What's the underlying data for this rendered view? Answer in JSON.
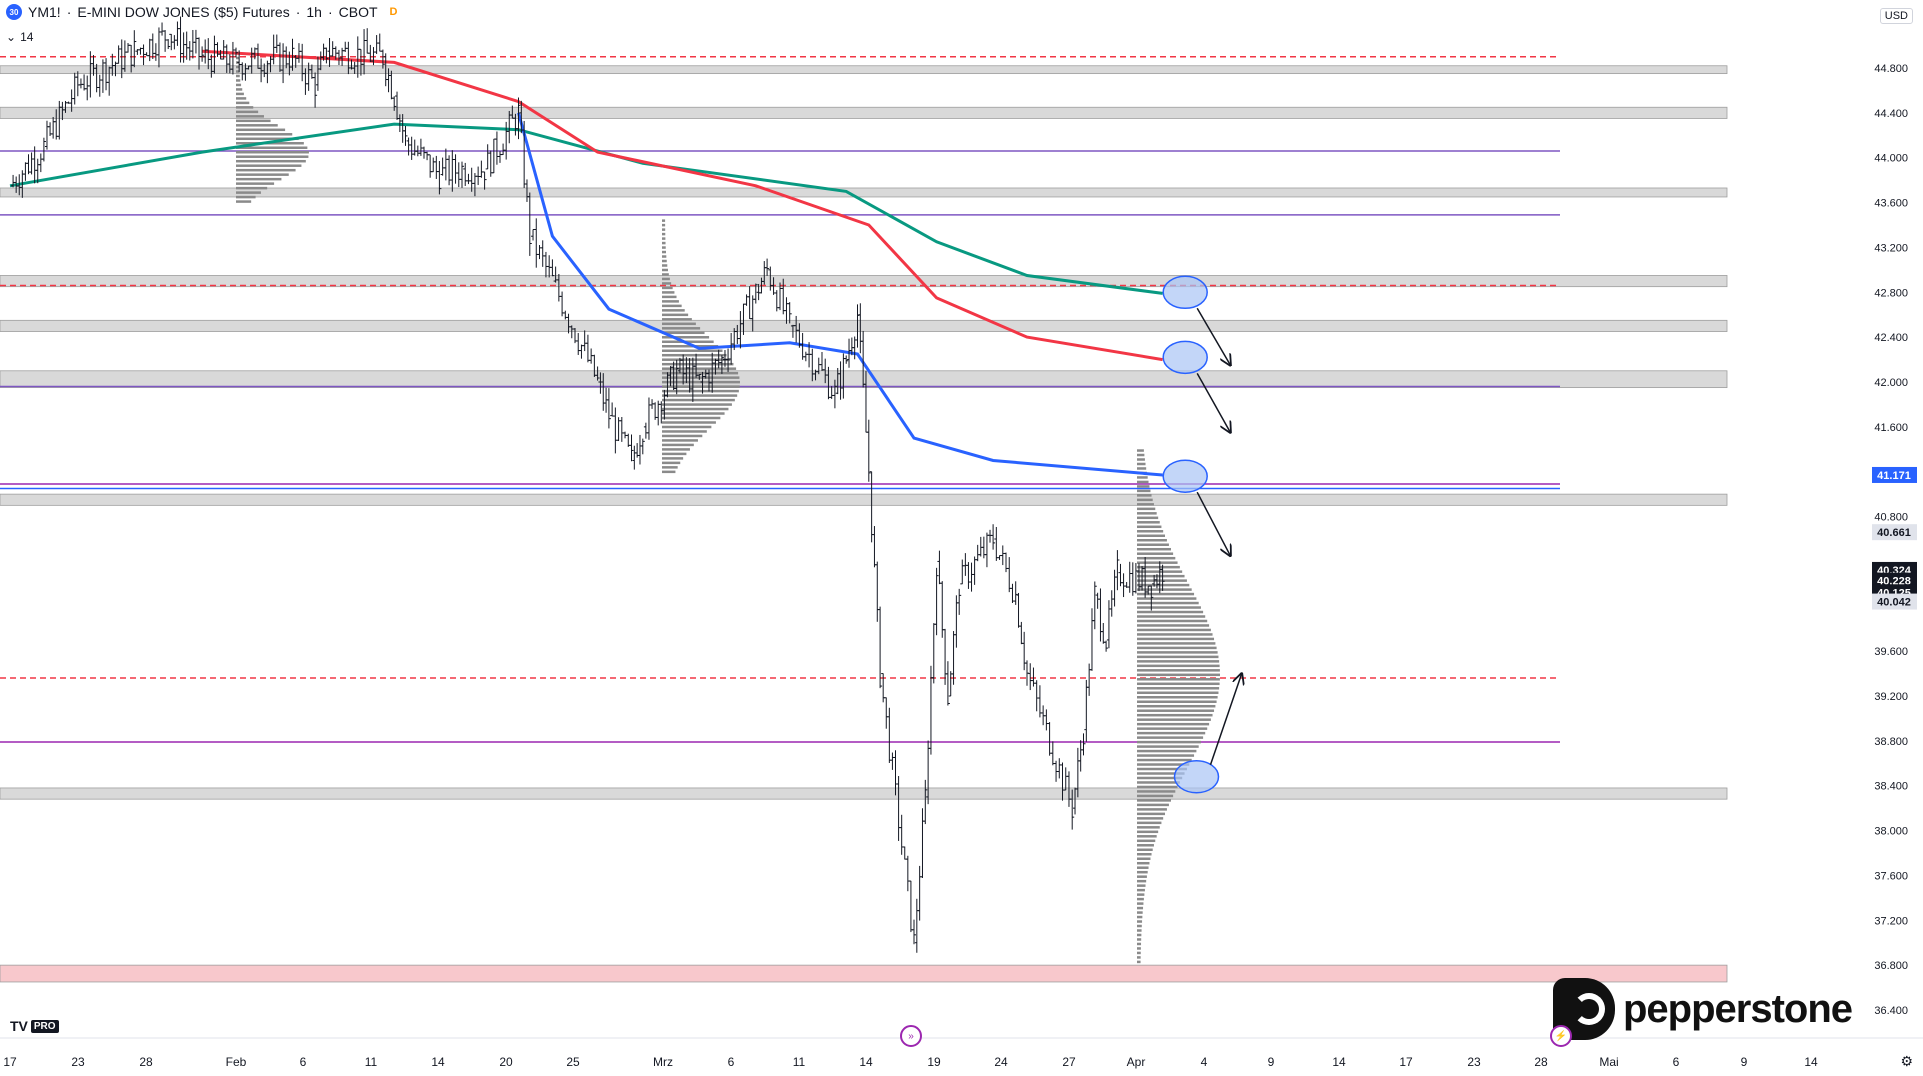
{
  "header": {
    "badge": "30",
    "symbol": "YM1!",
    "description": "E-MINI DOW JONES ($5) Futures",
    "interval": "1h",
    "exchange": "CBOT",
    "delayed_badge": "D",
    "length_value": "14"
  },
  "currency_label": "USD",
  "price_scale": {
    "ticks": [
      "44.800",
      "44.400",
      "44.000",
      "43.600",
      "43.200",
      "42.800",
      "42.400",
      "42.000",
      "41.600",
      "40.800",
      "39.600",
      "39.200",
      "38.800",
      "38.400",
      "38.000",
      "37.600",
      "37.200",
      "36.800",
      "36.400"
    ],
    "last_price_labels": [
      {
        "text": "41.171",
        "value": 41171,
        "bg": "#2962ff",
        "fg": "#ffffff"
      },
      {
        "text": "40.661",
        "value": 40661,
        "bg": "#e0e3eb",
        "fg": "#131722"
      },
      {
        "text": "40.324",
        "value": 40324,
        "bg": "#131722",
        "fg": "#ffffff"
      },
      {
        "text": "40.228",
        "value": 40228,
        "bg": "#131722",
        "fg": "#ffffff"
      },
      {
        "text": "40.125",
        "value": 40125,
        "bg": "#131722",
        "fg": "#ffffff"
      },
      {
        "text": "40.042",
        "value": 40042,
        "bg": "#e0e3eb",
        "fg": "#131722"
      }
    ]
  },
  "time_axis": {
    "labels": [
      "17",
      "23",
      "28",
      "Feb",
      "6",
      "11",
      "14",
      "20",
      "25",
      "Mrz",
      "6",
      "11",
      "14",
      "19",
      "24",
      "27",
      "Apr",
      "4",
      "9",
      "14",
      "17",
      "23",
      "28",
      "Mai",
      "6",
      "9",
      "14"
    ]
  },
  "chart_data": {
    "type": "candlestick",
    "title": "YM1! · E-MINI DOW JONES ($5) Futures · 1h · CBOT",
    "y_unit": "USD",
    "ylim": [
      36200,
      45200
    ],
    "x_range": [
      "17 Jan",
      "16 May"
    ],
    "grid": false,
    "price_path": [
      {
        "date": "17 Jan",
        "close": 43750
      },
      {
        "date": "20 Jan",
        "close": 44100
      },
      {
        "date": "23 Jan",
        "close": 44650
      },
      {
        "date": "28 Jan",
        "close": 44950
      },
      {
        "date": "31 Jan",
        "close": 45100
      },
      {
        "date": "3 Feb",
        "close": 44900
      },
      {
        "date": "6 Feb",
        "close": 44850
      },
      {
        "date": "11 Feb",
        "close": 44900
      },
      {
        "date": "13 Feb",
        "close": 44650
      },
      {
        "date": "14 Feb",
        "close": 44950
      },
      {
        "date": "19 Feb",
        "close": 44900
      },
      {
        "date": "20 Feb",
        "close": 44550
      },
      {
        "date": "21 Feb",
        "close": 44150
      },
      {
        "date": "24 Feb",
        "close": 43850
      },
      {
        "date": "26 Feb",
        "close": 43900
      },
      {
        "date": "28 Feb",
        "close": 43900
      },
      {
        "date": "3 Mar",
        "close": 44400
      },
      {
        "date": "4 Mar",
        "close": 43300
      },
      {
        "date": "6 Mar",
        "close": 42900
      },
      {
        "date": "10 Mar",
        "close": 42000
      },
      {
        "date": "11 Mar",
        "close": 41700
      },
      {
        "date": "13 Mar",
        "close": 41300
      },
      {
        "date": "14 Mar",
        "close": 41600
      },
      {
        "date": "17 Mar",
        "close": 42100
      },
      {
        "date": "19 Mar",
        "close": 42000
      },
      {
        "date": "21 Mar",
        "close": 42200
      },
      {
        "date": "24 Mar",
        "close": 42800
      },
      {
        "date": "25 Mar",
        "close": 43000
      },
      {
        "date": "27 Mar",
        "close": 42500
      },
      {
        "date": "31 Mar",
        "close": 41900
      },
      {
        "date": "1 Apr",
        "close": 42200
      },
      {
        "date": "2 Apr",
        "close": 42600
      },
      {
        "date": "3 Apr",
        "close": 41200
      },
      {
        "date": "4 Apr",
        "close": 39400
      },
      {
        "date": "7 Apr",
        "close": 37000
      },
      {
        "date": "8 Apr",
        "close": 38300
      },
      {
        "date": "9 Apr",
        "close": 40400
      },
      {
        "date": "10 Apr",
        "close": 39200
      },
      {
        "date": "11 Apr",
        "close": 40200
      },
      {
        "date": "14 Apr",
        "close": 40600
      },
      {
        "date": "16 Apr",
        "close": 40100
      },
      {
        "date": "17 Apr",
        "close": 39400
      },
      {
        "date": "21 Apr",
        "close": 38200
      },
      {
        "date": "22 Apr",
        "close": 38900
      },
      {
        "date": "23 Apr",
        "close": 40100
      },
      {
        "date": "24 Apr",
        "close": 39700
      },
      {
        "date": "25 Apr",
        "close": 40300
      },
      {
        "date": "28 Apr",
        "close": 40200
      },
      {
        "date": "29 Apr",
        "close": 40324
      }
    ],
    "moving_averages": [
      {
        "color": "#089981",
        "points": [
          {
            "date": "17 Jan",
            "value": 43750
          },
          {
            "date": "3 Feb",
            "value": 44050
          },
          {
            "date": "20 Feb",
            "value": 44300
          },
          {
            "date": "3 Mar",
            "value": 44250
          },
          {
            "date": "14 Mar",
            "value": 43950
          },
          {
            "date": "1 Apr",
            "value": 43700
          },
          {
            "date": "9 Apr",
            "value": 43250
          },
          {
            "date": "17 Apr",
            "value": 42950
          },
          {
            "date": "29 Apr",
            "value": 42790
          }
        ]
      },
      {
        "color": "#f23645",
        "points": [
          {
            "date": "3 Feb",
            "value": 44950
          },
          {
            "date": "20 Feb",
            "value": 44850
          },
          {
            "date": "3 Mar",
            "value": 44500
          },
          {
            "date": "10 Mar",
            "value": 44050
          },
          {
            "date": "24 Mar",
            "value": 43750
          },
          {
            "date": "3 Apr",
            "value": 43400
          },
          {
            "date": "9 Apr",
            "value": 42750
          },
          {
            "date": "17 Apr",
            "value": 42400
          },
          {
            "date": "29 Apr",
            "value": 42200
          }
        ]
      },
      {
        "color": "#2962ff",
        "points": [
          {
            "date": "3 Mar",
            "value": 44400
          },
          {
            "date": "6 Mar",
            "value": 43300
          },
          {
            "date": "11 Mar",
            "value": 42650
          },
          {
            "date": "19 Mar",
            "value": 42300
          },
          {
            "date": "27 Mar",
            "value": 42350
          },
          {
            "date": "2 Apr",
            "value": 42250
          },
          {
            "date": "7 Apr",
            "value": 41500
          },
          {
            "date": "14 Apr",
            "value": 41300
          },
          {
            "date": "29 Apr",
            "value": 41171
          }
        ]
      }
    ],
    "zones": [
      {
        "low": 44750,
        "high": 44820,
        "color": "#d9d9d9"
      },
      {
        "low": 44350,
        "high": 44450,
        "color": "#d9d9d9"
      },
      {
        "low": 43650,
        "high": 43730,
        "color": "#d9d9d9"
      },
      {
        "low": 42850,
        "high": 42950,
        "color": "#d9d9d9"
      },
      {
        "low": 42450,
        "high": 42550,
        "color": "#d9d9d9"
      },
      {
        "low": 41950,
        "high": 42100,
        "color": "#d9d9d9"
      },
      {
        "low": 40900,
        "high": 41000,
        "color": "#d9d9d9"
      },
      {
        "low": 38280,
        "high": 38380,
        "color": "#d9d9d9"
      },
      {
        "low": 36650,
        "high": 36800,
        "color": "#f8c8cc"
      }
    ],
    "horizontal_levels": [
      {
        "value": 44900,
        "style": "dashed",
        "color": "#f23645"
      },
      {
        "value": 44060,
        "style": "solid",
        "color": "#7e57c2"
      },
      {
        "value": 43490,
        "style": "solid",
        "color": "#7e57c2"
      },
      {
        "value": 42860,
        "style": "dashed",
        "color": "#f23645"
      },
      {
        "value": 41960,
        "style": "solid",
        "color": "#7e57c2"
      },
      {
        "value": 41090,
        "style": "solid",
        "color": "#9c27b0"
      },
      {
        "value": 41050,
        "style": "solid",
        "color": "#2962ff"
      },
      {
        "value": 39360,
        "style": "dashed",
        "color": "#f23645"
      },
      {
        "value": 38790,
        "style": "solid",
        "color": "#9c27b0"
      }
    ],
    "annotations": [
      {
        "type": "circle",
        "date": "1 May",
        "value": 42800,
        "arrow_to": {
          "date": "5 May",
          "value": 42150
        }
      },
      {
        "type": "circle",
        "date": "1 May",
        "value": 42220,
        "arrow_to": {
          "date": "5 May",
          "value": 41550
        }
      },
      {
        "type": "circle",
        "date": "1 May",
        "value": 41160,
        "arrow_to": {
          "date": "5 May",
          "value": 40450
        }
      },
      {
        "type": "circle",
        "date": "2 May",
        "value": 38480,
        "arrow_to": {
          "date": "6 May",
          "value": 39400
        }
      }
    ]
  },
  "branding": {
    "logo_text": "pepperstone",
    "tv_pro": "PRO"
  }
}
